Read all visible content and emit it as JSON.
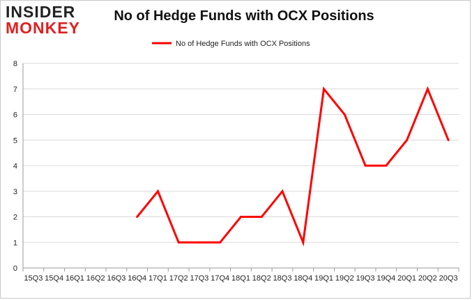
{
  "brand": {
    "line1": "INSIDER",
    "line2": "MONKEY"
  },
  "chart_data": {
    "type": "line",
    "title": "No of Hedge Funds with OCX Positions",
    "xlabel": "",
    "ylabel": "",
    "ylim": [
      0,
      8
    ],
    "yticks": [
      0,
      1,
      2,
      3,
      4,
      5,
      6,
      7,
      8
    ],
    "grid": true,
    "legend_position": "top-center",
    "categories": [
      "15Q3",
      "15Q4",
      "16Q1",
      "16Q2",
      "16Q3",
      "16Q4",
      "17Q1",
      "17Q2",
      "17Q3",
      "17Q4",
      "18Q1",
      "18Q2",
      "18Q3",
      "18Q4",
      "19Q1",
      "19Q2",
      "19Q3",
      "19Q4",
      "20Q1",
      "20Q2",
      "20Q3"
    ],
    "series": [
      {
        "name": "No of Hedge Funds with OCX Positions",
        "color": "#ff0000",
        "values": [
          null,
          null,
          null,
          null,
          null,
          2,
          3,
          1,
          1,
          1,
          2,
          2,
          3,
          1,
          7,
          6,
          4,
          4,
          5,
          7,
          5
        ]
      }
    ]
  }
}
